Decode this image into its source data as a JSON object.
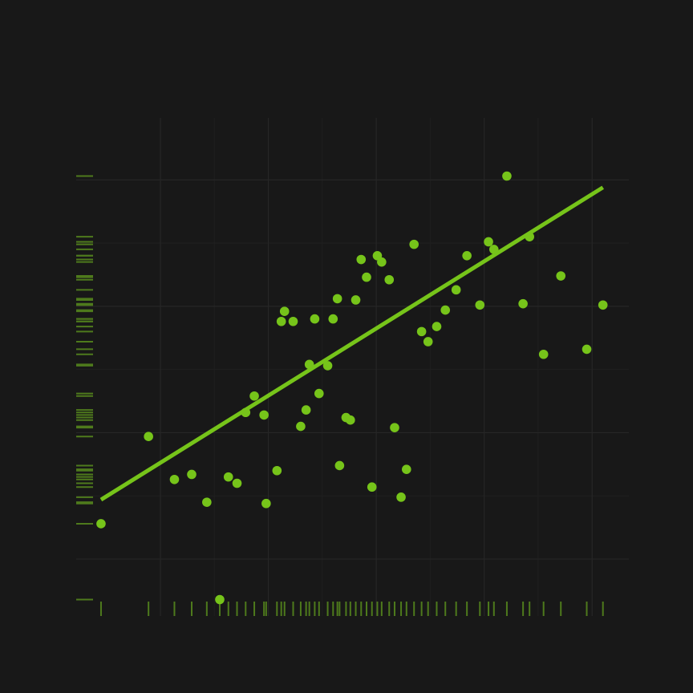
{
  "colors": {
    "background": "#181818",
    "grid_major": "#262626",
    "grid_minor": "#1f1f1f",
    "point": "#76c41a",
    "fit_line": "#76c41a",
    "rug": "#4e7a1c"
  },
  "chart_data": {
    "type": "scatter",
    "title": "",
    "xlabel": "",
    "ylabel": "",
    "grid": true,
    "xlim": [
      -1.78,
      3.34
    ],
    "ylim": [
      -1.95,
      1.99
    ],
    "x_grid_major": [
      -1.0,
      0.0,
      1.0,
      2.0,
      3.0
    ],
    "x_grid_minor": [
      -0.5,
      0.5,
      1.5,
      2.5
    ],
    "y_grid_major": [
      -1.5,
      -0.5,
      0.5,
      1.5
    ],
    "y_grid_minor": [
      -1.0,
      0.0,
      1.0
    ],
    "show_tick_labels": false,
    "rug": true,
    "fit_line": {
      "x": [
        -1.55,
        3.1
      ],
      "y": [
        -1.03,
        1.44
      ]
    },
    "x": [
      -1.55,
      -1.11,
      -0.87,
      -0.71,
      -0.57,
      -0.45,
      -0.37,
      -0.29,
      -0.21,
      -0.13,
      -0.04,
      -0.02,
      0.08,
      0.12,
      0.15,
      0.23,
      0.3,
      0.35,
      0.38,
      0.43,
      0.47,
      0.55,
      0.6,
      0.64,
      0.66,
      0.72,
      0.76,
      0.81,
      0.86,
      0.91,
      0.96,
      1.01,
      1.05,
      1.12,
      1.17,
      1.23,
      1.28,
      1.35,
      1.42,
      1.48,
      1.56,
      1.64,
      1.74,
      1.84,
      1.96,
      2.04,
      2.09,
      2.21,
      2.36,
      2.42,
      2.55,
      2.71,
      2.95,
      3.1
    ],
    "y": [
      -1.22,
      -0.53,
      -0.87,
      -0.83,
      -1.05,
      -1.82,
      -0.85,
      -0.9,
      -0.34,
      -0.21,
      -0.36,
      -1.06,
      -0.8,
      0.38,
      0.46,
      0.38,
      -0.45,
      -0.32,
      0.04,
      0.4,
      -0.19,
      0.03,
      0.4,
      0.56,
      -0.76,
      -0.38,
      -0.4,
      0.55,
      0.87,
      0.73,
      -0.93,
      0.9,
      0.85,
      0.71,
      -0.46,
      -1.01,
      -0.79,
      0.99,
      0.3,
      0.22,
      0.34,
      0.47,
      0.63,
      0.9,
      0.51,
      1.01,
      0.95,
      1.53,
      0.52,
      1.05,
      0.12,
      0.74,
      0.16,
      0.51
    ]
  }
}
